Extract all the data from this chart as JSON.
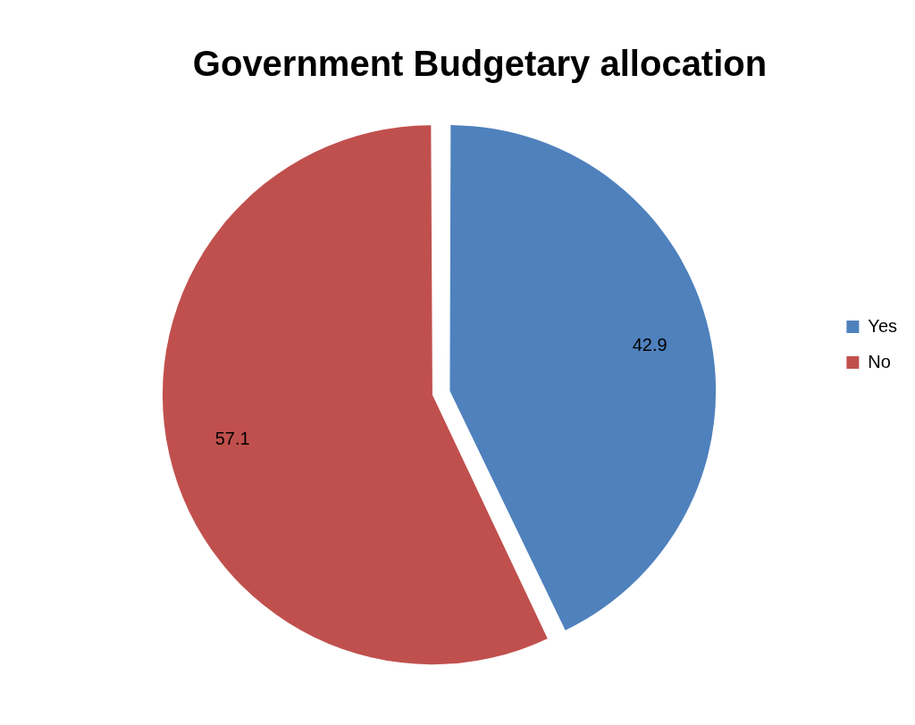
{
  "chart_data": {
    "type": "pie",
    "title": "Government Budgetary allocation",
    "categories": [
      "Yes",
      "No"
    ],
    "values": [
      42.9,
      57.1
    ],
    "colors": [
      "#4f81bd",
      "#c0504d"
    ],
    "data_labels": true,
    "legend": "right"
  }
}
